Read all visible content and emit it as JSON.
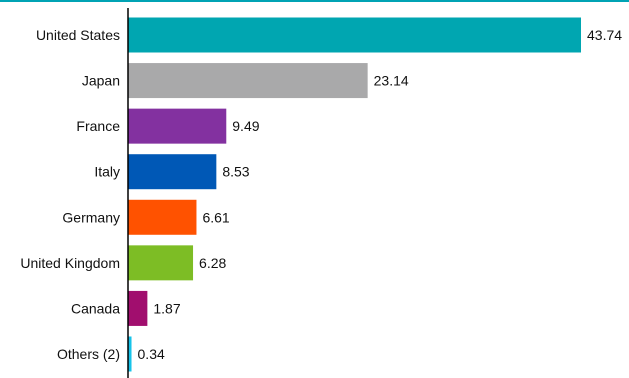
{
  "colors": {
    "top_rule": "#00a3b4",
    "axis_line": "#000000"
  },
  "chart_data": {
    "type": "bar",
    "orientation": "horizontal",
    "categories": [
      "United States",
      "Japan",
      "France",
      "Italy",
      "Germany",
      "United Kingdom",
      "Canada",
      "Others (2)"
    ],
    "values": [
      43.74,
      23.14,
      9.49,
      8.53,
      6.61,
      6.28,
      1.87,
      0.34
    ],
    "value_labels": [
      "43.74",
      "23.14",
      "9.49",
      "8.53",
      "6.61",
      "6.28",
      "1.87",
      "0.34"
    ],
    "bar_colors": [
      "#00a6b1",
      "#a9a9aa",
      "#8331a0",
      "#0058b6",
      "#ff5200",
      "#7dbd25",
      "#a10e6e",
      "#17c3e9"
    ],
    "xlim": [
      0,
      43.74
    ],
    "grid": false,
    "legend": "none"
  }
}
